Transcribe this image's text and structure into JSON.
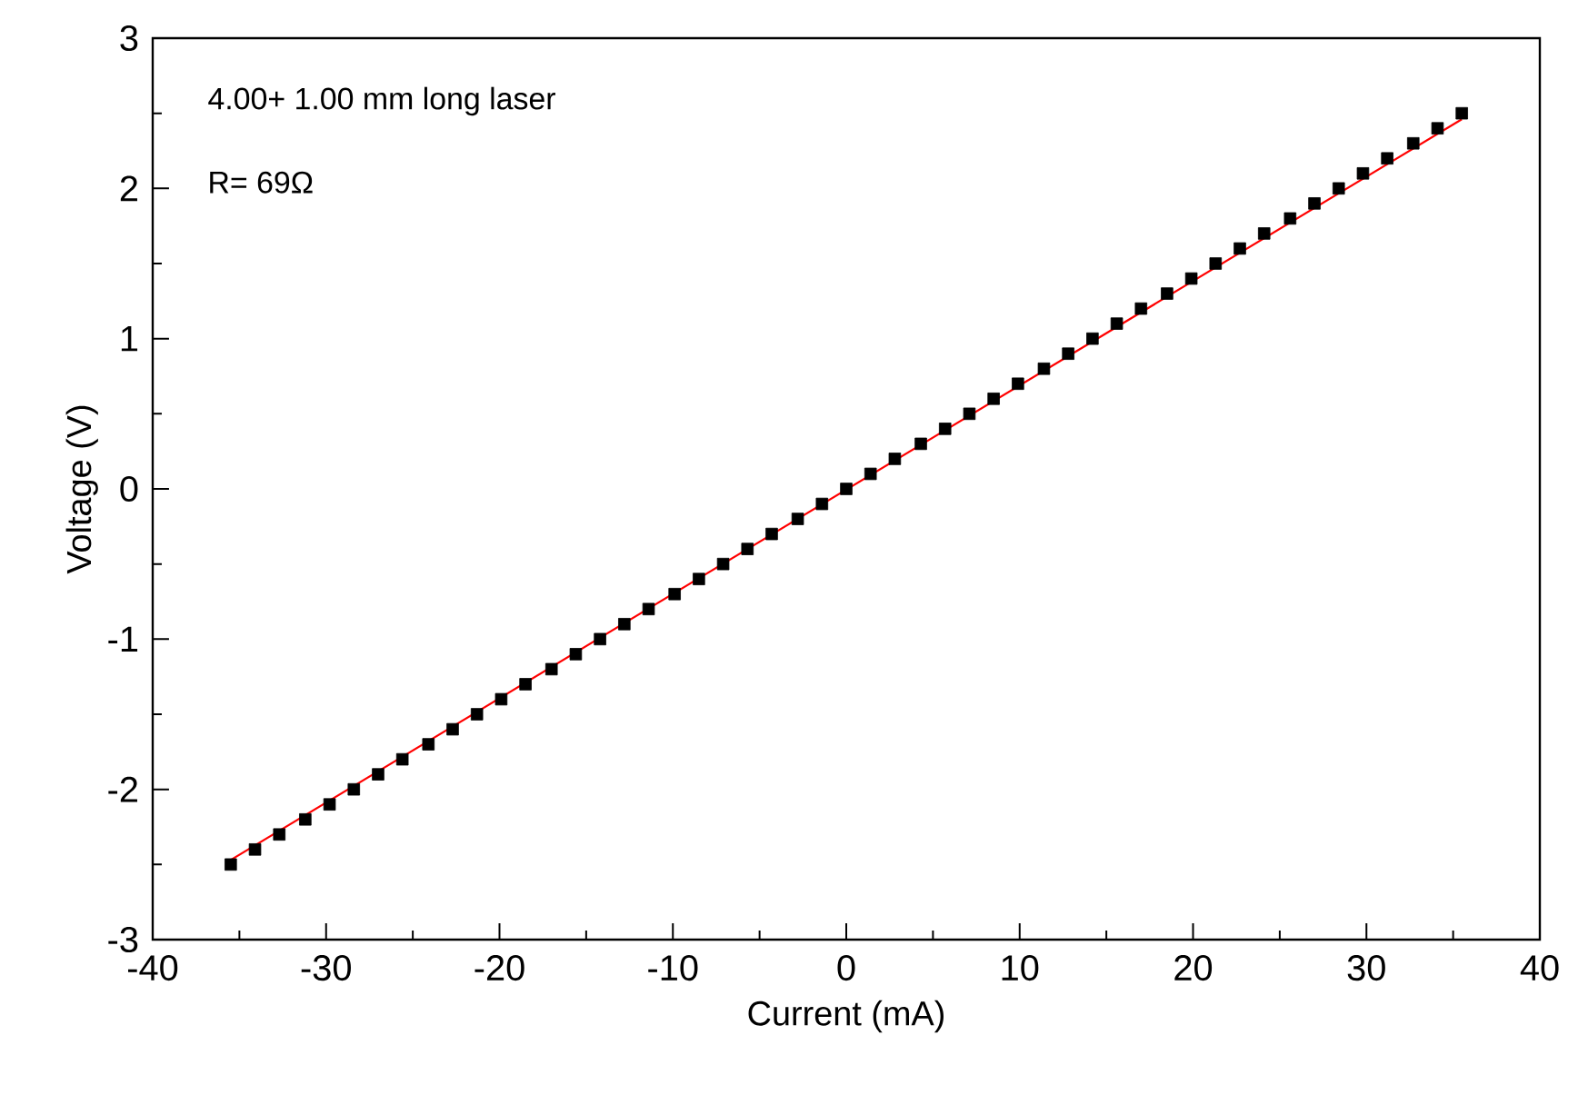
{
  "chart_data": {
    "type": "scatter",
    "xlabel": "Current (mA)",
    "ylabel": "Voltage (V)",
    "annotations": [
      "4.00+ 1.00 mm long laser",
      "R= 69Ω"
    ],
    "xlim": [
      -40,
      40
    ],
    "ylim": [
      -3,
      3
    ],
    "xticks": [
      -40,
      -30,
      -20,
      -10,
      0,
      10,
      20,
      30,
      40
    ],
    "yticks": [
      -3,
      -2,
      -1,
      0,
      1,
      2,
      3
    ],
    "grid": false,
    "marker": "square",
    "series": [
      {
        "color": "#000000",
        "x": [
          -35.5,
          -34.1,
          -32.7,
          -31.2,
          -29.8,
          -28.4,
          -27.0,
          -25.6,
          -24.1,
          -22.7,
          -21.3,
          -19.9,
          -18.5,
          -17.0,
          -15.6,
          -14.2,
          -12.8,
          -11.4,
          -9.9,
          -8.5,
          -7.1,
          -5.7,
          -4.3,
          -2.8,
          -1.4,
          0,
          1.4,
          2.8,
          4.3,
          5.7,
          7.1,
          8.5,
          9.9,
          11.4,
          12.8,
          14.2,
          15.6,
          17.0,
          18.5,
          19.9,
          21.3,
          22.7,
          24.1,
          25.6,
          27.0,
          28.4,
          29.8,
          31.2,
          32.7,
          34.1,
          35.5
        ],
        "values": [
          -2.5,
          -2.4,
          -2.3,
          -2.2,
          -2.1,
          -2.0,
          -1.9,
          -1.8,
          -1.7,
          -1.6,
          -1.5,
          -1.4,
          -1.3,
          -1.2,
          -1.1,
          -1.0,
          -0.9,
          -0.8,
          -0.7,
          -0.6,
          -0.5,
          -0.4,
          -0.3,
          -0.2,
          -0.1,
          0,
          0.1,
          0.2,
          0.3,
          0.4,
          0.5,
          0.6,
          0.7,
          0.8,
          0.9,
          1.0,
          1.1,
          1.2,
          1.3,
          1.4,
          1.5,
          1.6,
          1.7,
          1.8,
          1.9,
          2.0,
          2.1,
          2.2,
          2.3,
          2.4,
          2.5
        ]
      },
      {
        "type": "line",
        "color": "#ff0000",
        "marker": "none",
        "line_style": "solid",
        "x": [
          -35.5,
          35.5
        ],
        "values": [
          -2.47,
          2.46
        ]
      }
    ]
  }
}
